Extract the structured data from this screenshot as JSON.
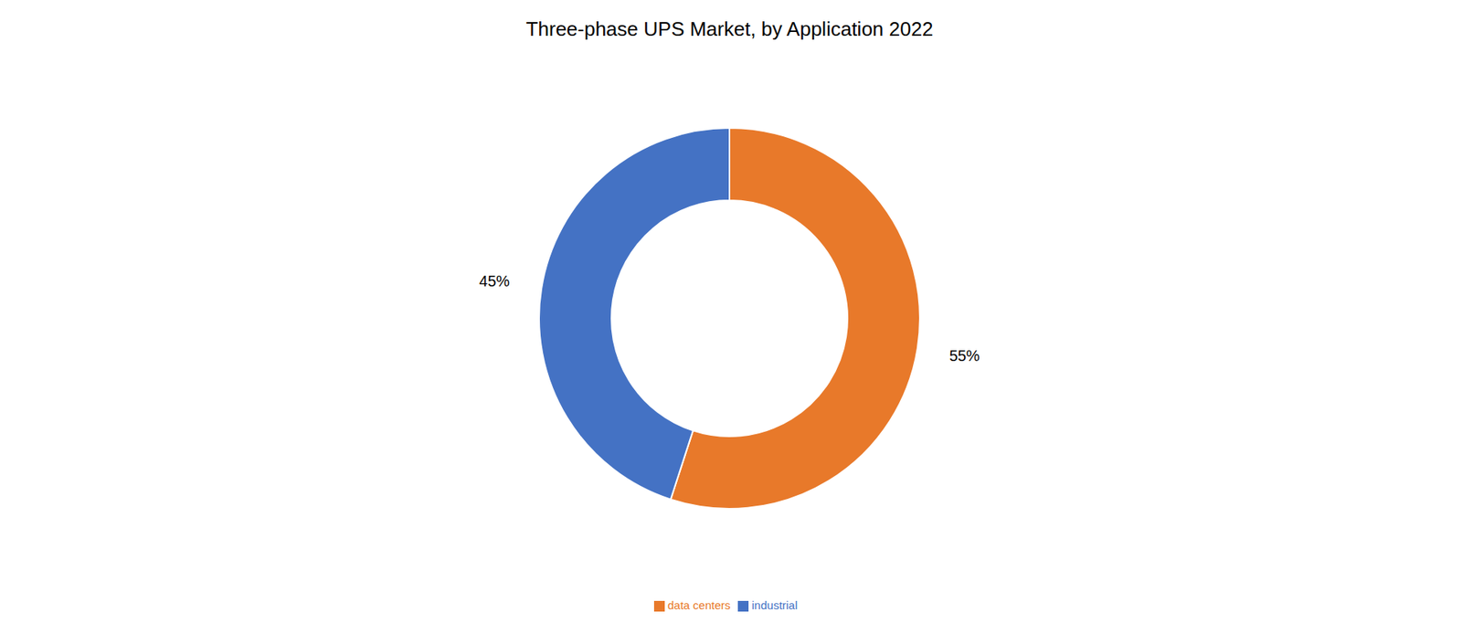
{
  "chart_data": {
    "type": "donut",
    "title": "Three-phase UPS Market, by Application 2022",
    "categories": [
      "data centers",
      "industrial"
    ],
    "values": [
      55,
      45
    ],
    "colors": [
      "#E8792A",
      "#4472C4"
    ],
    "data_labels": true,
    "value_labels": [
      "55%",
      "45%"
    ],
    "legend": "bottom"
  }
}
